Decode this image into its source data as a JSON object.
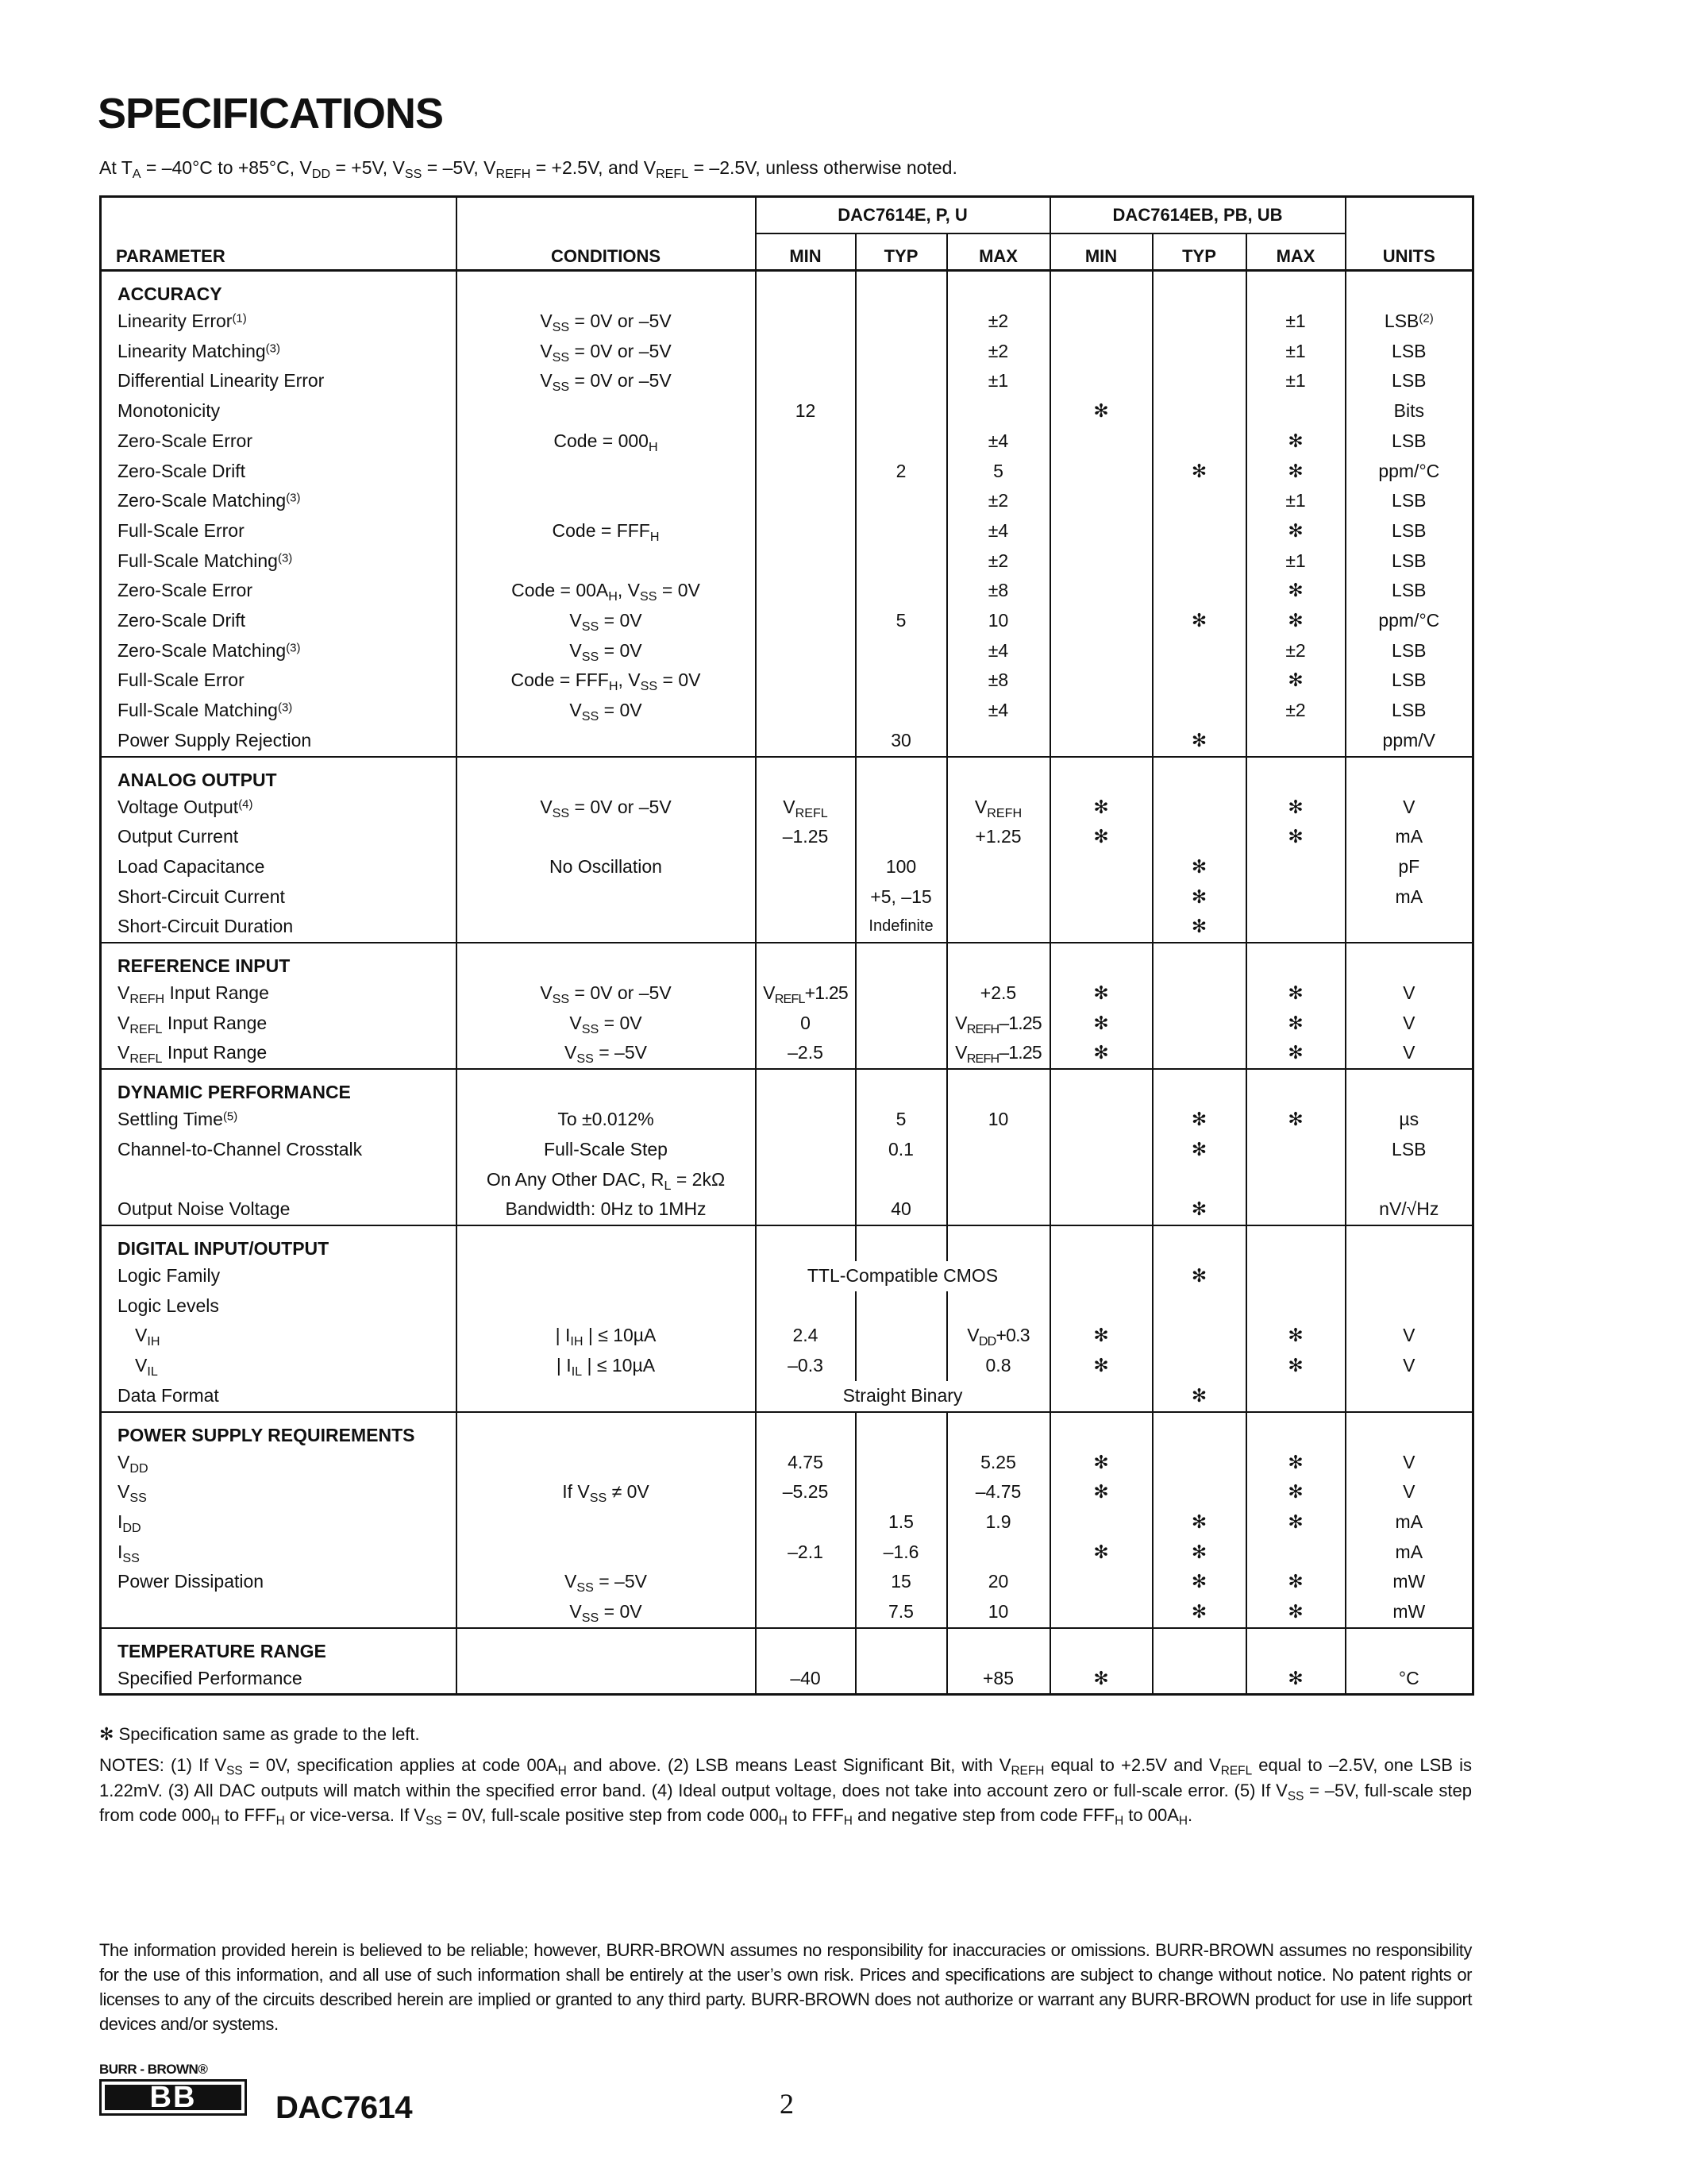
{
  "title": "SPECIFICATIONS",
  "subtitle": [
    "At T",
    {
      "sub": "A"
    },
    " = –40°C to +85°C, V",
    {
      "sub": "DD"
    },
    " = +5V, V",
    {
      "sub": "SS"
    },
    " = –5V, V",
    {
      "sub": "REFH"
    },
    " = +2.5V, and V",
    {
      "sub": "REFL"
    },
    " = –2.5V, unless otherwise noted."
  ],
  "header": {
    "parameter": "PARAMETER",
    "conditions": "CONDITIONS",
    "group1": "DAC7614E, P, U",
    "group2": "DAC7614EB, PB, UB",
    "min": "MIN",
    "typ": "TYP",
    "max": "MAX",
    "units": "UNITS"
  },
  "star": "✻",
  "sections": [
    {
      "title": "ACCURACY",
      "rows": [
        {
          "param": [
            "Linearity Error",
            {
              "sup": "(1)"
            }
          ],
          "cond": [
            "V",
            {
              "sub": "SS"
            },
            " = 0V or –5V"
          ],
          "vals": [
            "",
            "",
            "±2",
            "",
            "",
            "±1"
          ],
          "units": [
            "LSB",
            {
              "sup": "(2)"
            }
          ]
        },
        {
          "param": [
            "Linearity Matching",
            {
              "sup": "(3)"
            }
          ],
          "cond": [
            "V",
            {
              "sub": "SS"
            },
            " = 0V or –5V"
          ],
          "vals": [
            "",
            "",
            "±2",
            "",
            "",
            "±1"
          ],
          "units": "LSB"
        },
        {
          "param": "Differential Linearity Error",
          "cond": [
            "V",
            {
              "sub": "SS"
            },
            " = 0V or –5V"
          ],
          "vals": [
            "",
            "",
            "±1",
            "",
            "",
            "±1"
          ],
          "units": "LSB"
        },
        {
          "param": "Monotonicity",
          "cond": "",
          "vals": [
            "12",
            "",
            "",
            "✻",
            "",
            ""
          ],
          "units": "Bits"
        },
        {
          "param": "Zero-Scale Error",
          "cond": [
            "Code = 000",
            {
              "sub": "H"
            }
          ],
          "vals": [
            "",
            "",
            "±4",
            "",
            "",
            "✻"
          ],
          "units": "LSB"
        },
        {
          "param": "Zero-Scale Drift",
          "cond": "",
          "vals": [
            "",
            "2",
            "5",
            "",
            "✻",
            "✻"
          ],
          "units": "ppm/°C"
        },
        {
          "param": [
            "Zero-Scale Matching",
            {
              "sup": "(3)"
            }
          ],
          "cond": "",
          "vals": [
            "",
            "",
            "±2",
            "",
            "",
            "±1"
          ],
          "units": "LSB"
        },
        {
          "param": "Full-Scale Error",
          "cond": [
            "Code = FFF",
            {
              "sub": "H"
            }
          ],
          "vals": [
            "",
            "",
            "±4",
            "",
            "",
            "✻"
          ],
          "units": "LSB"
        },
        {
          "param": [
            "Full-Scale Matching",
            {
              "sup": "(3)"
            }
          ],
          "cond": "",
          "vals": [
            "",
            "",
            "±2",
            "",
            "",
            "±1"
          ],
          "units": "LSB"
        },
        {
          "param": "Zero-Scale Error",
          "cond": [
            "Code = 00A",
            {
              "sub": "H"
            },
            ", V",
            {
              "sub": "SS"
            },
            " = 0V"
          ],
          "vals": [
            "",
            "",
            "±8",
            "",
            "",
            "✻"
          ],
          "units": "LSB"
        },
        {
          "param": "Zero-Scale Drift",
          "cond": [
            "V",
            {
              "sub": "SS"
            },
            " = 0V"
          ],
          "vals": [
            "",
            "5",
            "10",
            "",
            "✻",
            "✻"
          ],
          "units": "ppm/°C"
        },
        {
          "param": [
            "Zero-Scale Matching",
            {
              "sup": "(3)"
            }
          ],
          "cond": [
            "V",
            {
              "sub": "SS"
            },
            " = 0V"
          ],
          "vals": [
            "",
            "",
            "±4",
            "",
            "",
            "±2"
          ],
          "units": "LSB"
        },
        {
          "param": "Full-Scale Error",
          "cond": [
            "Code = FFF",
            {
              "sub": "H"
            },
            ", V",
            {
              "sub": "SS"
            },
            " = 0V"
          ],
          "vals": [
            "",
            "",
            "±8",
            "",
            "",
            "✻"
          ],
          "units": "LSB"
        },
        {
          "param": [
            "Full-Scale Matching",
            {
              "sup": "(3)"
            }
          ],
          "cond": [
            "V",
            {
              "sub": "SS"
            },
            " = 0V"
          ],
          "vals": [
            "",
            "",
            "±4",
            "",
            "",
            "±2"
          ],
          "units": "LSB"
        },
        {
          "param": "Power Supply Rejection",
          "cond": "",
          "vals": [
            "",
            "30",
            "",
            "",
            "✻",
            ""
          ],
          "units": "ppm/V"
        }
      ]
    },
    {
      "title": "ANALOG OUTPUT",
      "rows": [
        {
          "param": [
            "Voltage Output",
            {
              "sup": "(4)"
            }
          ],
          "cond": [
            "V",
            {
              "sub": "SS"
            },
            " = 0V or –5V"
          ],
          "vals": [
            [
              "V",
              {
                "sub": "REFL"
              }
            ],
            "",
            [
              "V",
              {
                "sub": "REFH"
              }
            ],
            "✻",
            "",
            "✻"
          ],
          "units": "V"
        },
        {
          "param": "Output Current",
          "cond": "",
          "vals": [
            "–1.25",
            "",
            "+1.25",
            "✻",
            "",
            "✻"
          ],
          "units": "mA"
        },
        {
          "param": "Load Capacitance",
          "cond": "No Oscillation",
          "vals": [
            "",
            "100",
            "",
            "",
            "✻",
            ""
          ],
          "units": "pF"
        },
        {
          "param": "Short-Circuit Current",
          "cond": "",
          "vals": [
            "",
            "+5, –15",
            "",
            "",
            "✻",
            ""
          ],
          "units": "mA"
        },
        {
          "param": "Short-Circuit Duration",
          "cond": "",
          "vals": [
            "",
            "Indefinite",
            "",
            "",
            "✻",
            ""
          ],
          "units": ""
        }
      ]
    },
    {
      "title": "REFERENCE INPUT",
      "rows": [
        {
          "param": [
            "V",
            {
              "sub": "REFH"
            },
            " Input Range"
          ],
          "cond": [
            "V",
            {
              "sub": "SS"
            },
            " = 0V or –5V"
          ],
          "vals": [
            [
              "V",
              {
                "sub": "REFL"
              },
              "+1.25"
            ],
            "",
            "+2.5",
            "✻",
            "",
            "✻"
          ],
          "units": "V"
        },
        {
          "param": [
            "V",
            {
              "sub": "REFL"
            },
            " Input Range"
          ],
          "cond": [
            "V",
            {
              "sub": "SS"
            },
            " = 0V"
          ],
          "vals": [
            "0",
            "",
            [
              "V",
              {
                "sub": "REFH"
              },
              "–1.25"
            ],
            "✻",
            "",
            "✻"
          ],
          "units": "V"
        },
        {
          "param": [
            "V",
            {
              "sub": "REFL"
            },
            " Input Range"
          ],
          "cond": [
            "V",
            {
              "sub": "SS"
            },
            " = –5V"
          ],
          "vals": [
            "–2.5",
            "",
            [
              "V",
              {
                "sub": "REFH"
              },
              "–1.25"
            ],
            "✻",
            "",
            "✻"
          ],
          "units": "V"
        }
      ]
    },
    {
      "title": "DYNAMIC PERFORMANCE",
      "rows": [
        {
          "param": [
            "Settling Time",
            {
              "sup": "(5)"
            }
          ],
          "cond": "To ±0.012%",
          "vals": [
            "",
            "5",
            "10",
            "",
            "✻",
            "✻"
          ],
          "units": "µs"
        },
        {
          "param": "Channel-to-Channel Crosstalk",
          "cond": "Full-Scale Step",
          "vals": [
            "",
            "0.1",
            "",
            "",
            "✻",
            ""
          ],
          "units": "LSB"
        },
        {
          "param": "",
          "cond": [
            "On Any Other DAC, R",
            {
              "sub": "L"
            },
            " = 2kΩ"
          ],
          "vals": [
            "",
            "",
            "",
            "",
            "",
            ""
          ],
          "units": ""
        },
        {
          "param": "Output Noise Voltage",
          "cond": "Bandwidth: 0Hz to 1MHz",
          "vals": [
            "",
            "40",
            "",
            "",
            "✻",
            ""
          ],
          "units": "nV/√Hz"
        }
      ]
    },
    {
      "title": "DIGITAL INPUT/OUTPUT",
      "rows": [
        {
          "param": "Logic Family",
          "cond": "",
          "span": "TTL-Compatible CMOS",
          "vals2": [
            "",
            "✻",
            ""
          ],
          "units": ""
        },
        {
          "param": "Logic Levels",
          "cond": "",
          "vals": [
            "",
            "",
            "",
            "",
            "",
            ""
          ],
          "units": ""
        },
        {
          "indent": true,
          "param": [
            "V",
            {
              "sub": "IH"
            }
          ],
          "cond": [
            "| I",
            {
              "sub": "IH"
            },
            " | ≤ 10µA"
          ],
          "vals": [
            "2.4",
            "",
            [
              "V",
              {
                "sub": "DD"
              },
              "+0.3"
            ],
            "✻",
            "",
            "✻"
          ],
          "units": "V"
        },
        {
          "indent": true,
          "param": [
            "V",
            {
              "sub": "IL"
            }
          ],
          "cond": [
            "| I",
            {
              "sub": "IL"
            },
            " | ≤ 10µA"
          ],
          "vals": [
            "–0.3",
            "",
            "0.8",
            "✻",
            "",
            "✻"
          ],
          "units": "V"
        },
        {
          "param": "Data Format",
          "cond": "",
          "span": "Straight Binary",
          "vals2": [
            "",
            "✻",
            ""
          ],
          "units": ""
        }
      ]
    },
    {
      "title": "POWER SUPPLY REQUIREMENTS",
      "rows": [
        {
          "param": [
            "V",
            {
              "sub": "DD"
            }
          ],
          "cond": "",
          "vals": [
            "4.75",
            "",
            "5.25",
            "✻",
            "",
            "✻"
          ],
          "units": "V"
        },
        {
          "param": [
            "V",
            {
              "sub": "SS"
            }
          ],
          "cond": [
            "If V",
            {
              "sub": "SS"
            },
            " ≠ 0V"
          ],
          "vals": [
            "–5.25",
            "",
            "–4.75",
            "✻",
            "",
            "✻"
          ],
          "units": "V"
        },
        {
          "param": [
            "I",
            {
              "sub": "DD"
            }
          ],
          "cond": "",
          "vals": [
            "",
            "1.5",
            "1.9",
            "",
            "✻",
            "✻"
          ],
          "units": "mA"
        },
        {
          "param": [
            "I",
            {
              "sub": "SS"
            }
          ],
          "cond": "",
          "vals": [
            "–2.1",
            "–1.6",
            "",
            "✻",
            "✻",
            ""
          ],
          "units": "mA"
        },
        {
          "param": "Power Dissipation",
          "cond": [
            "V",
            {
              "sub": "SS"
            },
            " = –5V"
          ],
          "vals": [
            "",
            "15",
            "20",
            "",
            "✻",
            "✻"
          ],
          "units": "mW"
        },
        {
          "param": "",
          "cond": [
            "V",
            {
              "sub": "SS"
            },
            " = 0V"
          ],
          "vals": [
            "",
            "7.5",
            "10",
            "",
            "✻",
            "✻"
          ],
          "units": "mW"
        }
      ]
    },
    {
      "title": "TEMPERATURE RANGE",
      "rows": [
        {
          "param": "Specified Performance",
          "cond": "",
          "vals": [
            "–40",
            "",
            "+85",
            "✻",
            "",
            "✻"
          ],
          "units": "°C"
        }
      ]
    }
  ],
  "star_note": "✻ Specification same as grade to the left.",
  "notes": [
    "NOTES: (1) If V",
    {
      "sub": "SS"
    },
    " = 0V, specification applies at code 00A",
    {
      "sub": "H"
    },
    " and above. (2) LSB means Least Significant Bit, with V",
    {
      "sub": "REFH"
    },
    " equal to +2.5V and V",
    {
      "sub": "REFL"
    },
    " equal to –2.5V, one LSB is 1.22mV. (3) All DAC outputs will match within the specified error band. (4) Ideal output voltage, does not take into account zero or full-scale error. (5) If V",
    {
      "sub": "SS"
    },
    " = –5V, full-scale step from code 000",
    {
      "sub": "H"
    },
    " to FFF",
    {
      "sub": "H"
    },
    " or vice-versa. If V",
    {
      "sub": "SS"
    },
    " = 0V, full-scale positive step from code 000",
    {
      "sub": "H"
    },
    " to FFF",
    {
      "sub": "H"
    },
    " and negative step from code FFF",
    {
      "sub": "H"
    },
    " to 00A",
    {
      "sub": "H"
    },
    "."
  ],
  "disclaimer": "The information provided herein is believed to be reliable; however, BURR-BROWN assumes no responsibility for inaccuracies or omissions. BURR-BROWN assumes no responsibility for the use of this information, and all use of such information shall be entirely at the user’s own risk. Prices and specifications are subject to change without notice. No patent rights or licenses to any of the circuits described herein are implied or granted to any third party. BURR-BROWN does not authorize or warrant any BURR-BROWN product for use in life support devices and/or systems.",
  "footer": {
    "logo_text": "BURR - BROWN®",
    "logo_mark": "BB",
    "part_number": "DAC7614",
    "page_number": "2"
  }
}
